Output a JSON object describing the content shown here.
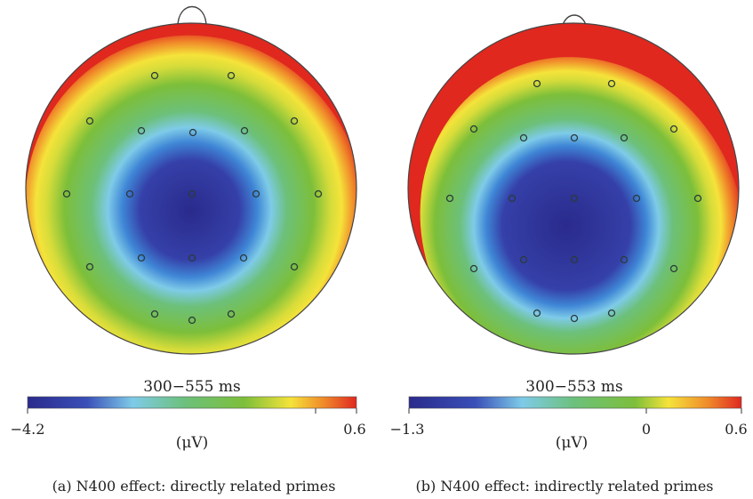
{
  "panels": [
    {
      "id": "a",
      "time_window": "300−555 ms",
      "unit": "(μV)",
      "caption": "(a)  N400 effect: directly related primes",
      "colorbar": {
        "min_label": "−4.2",
        "max_label": "0.6"
      }
    },
    {
      "id": "b",
      "time_window": "300−553 ms",
      "unit": "(μV)",
      "caption": "(b)  N400 effect: indirectly related primes",
      "colorbar": {
        "min_label": "−1.3",
        "mid_label": "0",
        "max_label": "0.6"
      }
    }
  ],
  "colors": {
    "scale": [
      "#2a2a8c",
      "#3a4fb8",
      "#3f86d6",
      "#7ecbe8",
      "#6cc07a",
      "#7dbf3a",
      "#c8d12e",
      "#f5e33a",
      "#f08a2a",
      "#e0281f"
    ],
    "electrode_stroke": "#2b3a3a",
    "head_outline": "#444444"
  }
}
